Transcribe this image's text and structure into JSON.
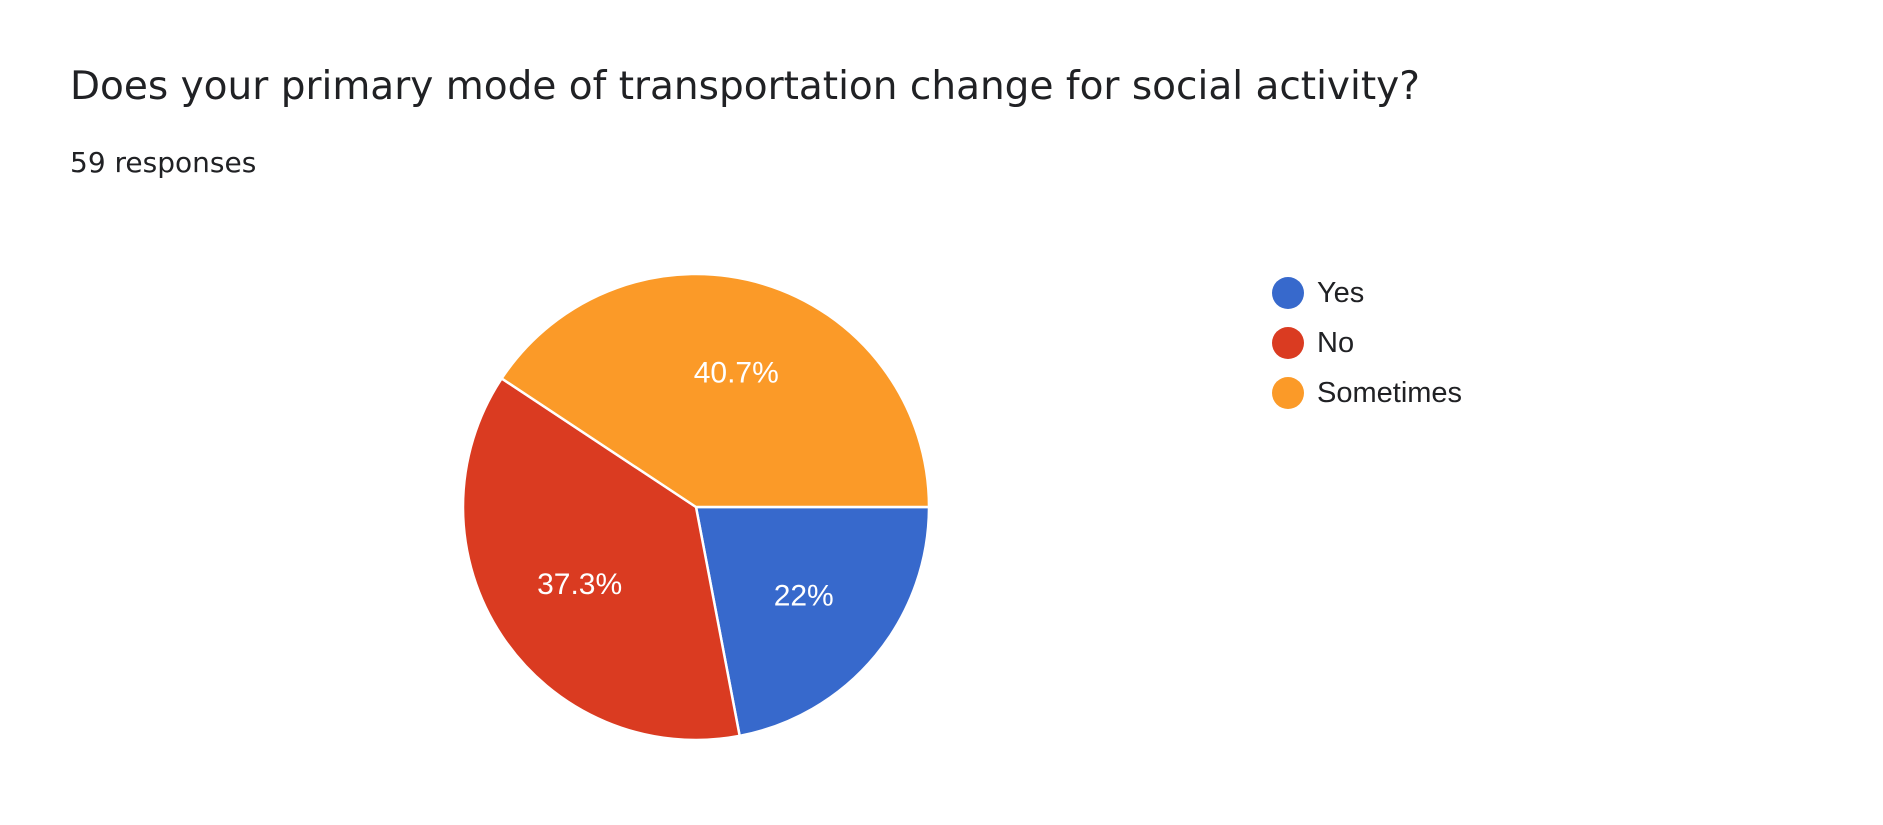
{
  "header": {
    "title": "Does your primary mode of transportation change for social activity?",
    "responses": "59 responses"
  },
  "chart_data": {
    "type": "pie",
    "categories": [
      "Yes",
      "No",
      "Sometimes"
    ],
    "values": [
      22,
      37.3,
      40.7
    ],
    "labels": [
      "22%",
      "37.3%",
      "40.7%"
    ],
    "colors": [
      "#3769CC",
      "#DA3B21",
      "#FB9A28"
    ],
    "legend_position": "right"
  }
}
